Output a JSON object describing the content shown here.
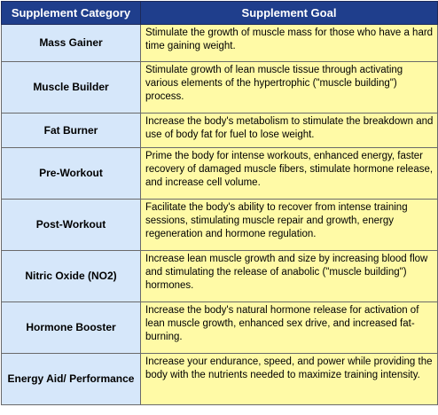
{
  "table": {
    "headers": {
      "category": "Supplement Category",
      "goal": "Supplement Goal"
    },
    "rows": [
      {
        "category": "Mass Gainer",
        "goal": "Stimulate the growth of muscle mass for those who have a hard time gaining weight."
      },
      {
        "category": "Muscle Builder",
        "goal": "Stimulate growth of lean muscle tissue through activating various elements of the hypertrophic (\"muscle building\") process."
      },
      {
        "category": "Fat Burner",
        "goal": "Increase the body's metabolism to stimulate the breakdown and use of body fat for fuel to lose weight."
      },
      {
        "category": "Pre-Workout",
        "goal": "Prime the body for intense workouts, enhanced energy, faster recovery of damaged muscle fibers, stimulate hormone release, and increase cell volume."
      },
      {
        "category": "Post-Workout",
        "goal": "Facilitate the body's ability to recover from intense training sessions, stimulating muscle repair and growth, energy regeneration and hormone regulation."
      },
      {
        "category": "Nitric Oxide (NO2)",
        "goal": "Increase lean muscle growth and size by increasing blood flow and stimulating the release of anabolic (\"muscle building\") hormones."
      },
      {
        "category": "Hormone Booster",
        "goal": "Increase the body's natural hormone release for activation of lean muscle growth, enhanced sex drive, and increased fat-burning."
      },
      {
        "category": "Energy Aid/ Performance",
        "goal": "Increase your endurance, speed, and power while providing the body with the nutrients needed to maximize training intensity."
      }
    ]
  }
}
